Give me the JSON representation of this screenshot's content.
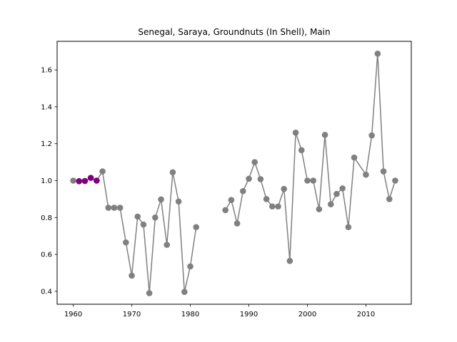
{
  "chart_data": {
    "type": "line",
    "title": "Senegal, Saraya, Groundnuts (In Shell), Main",
    "xlabel": "",
    "ylabel": "",
    "xlim": [
      1957.25,
      2017.75
    ],
    "ylim": [
      0.33,
      1.755
    ],
    "x_ticks": [
      1960,
      1970,
      1980,
      1990,
      2000,
      2010
    ],
    "y_ticks": [
      0.4,
      0.6,
      0.8,
      1.0,
      1.2,
      1.4,
      1.6
    ],
    "grid": false,
    "line_color": "#808080",
    "marker_color": "#808080",
    "highlight_color": "#800080",
    "segments": [
      {
        "x": [
          1960,
          1961,
          1962,
          1963,
          1964,
          1965,
          1966,
          1967,
          1968,
          1969,
          1970,
          1971,
          1972,
          1973,
          1974,
          1975,
          1976,
          1977,
          1978,
          1979,
          1980,
          1981
        ],
        "y": [
          1.0,
          0.997,
          0.998,
          1.015,
          1.0,
          1.05,
          0.853,
          0.853,
          0.853,
          0.665,
          0.485,
          0.805,
          0.762,
          0.39,
          0.8,
          0.898,
          0.652,
          1.045,
          0.887,
          0.397,
          0.535,
          0.748
        ]
      },
      {
        "x": [
          1986,
          1987,
          1988,
          1989,
          1990,
          1991,
          1992,
          1993,
          1994,
          1995,
          1996,
          1997,
          1998,
          1999,
          2000,
          2001,
          2002,
          2003,
          2004,
          2005,
          2006,
          2007,
          2008,
          2010,
          2011,
          2012,
          2013,
          2014,
          2015
        ],
        "y": [
          0.84,
          0.895,
          0.768,
          0.943,
          1.01,
          1.1,
          1.008,
          0.9,
          0.86,
          0.86,
          0.955,
          0.565,
          1.26,
          1.165,
          1.0,
          1.0,
          0.845,
          1.248,
          0.872,
          0.928,
          0.958,
          0.748,
          1.125,
          1.032,
          1.245,
          1.688,
          1.05,
          0.9,
          1.0
        ]
      }
    ],
    "highlight_points": {
      "x": [
        1961,
        1962,
        1963,
        1964
      ],
      "y": [
        0.997,
        0.998,
        1.015,
        1.0
      ]
    }
  }
}
